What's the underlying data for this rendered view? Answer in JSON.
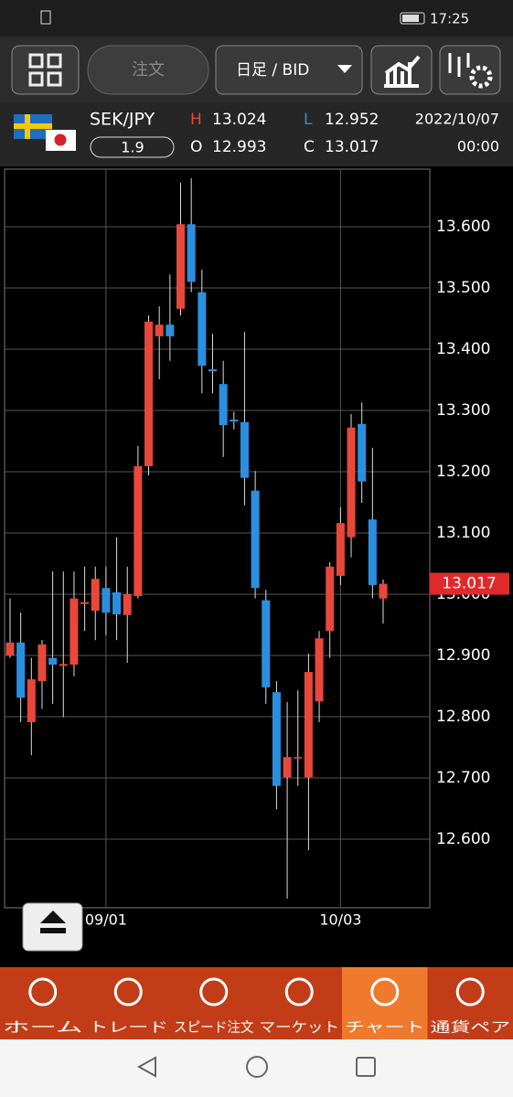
{
  "status_bar": {
    "time": "17:25"
  },
  "toolbar": {
    "order_button": "注文",
    "timeframe": "日足 / BID"
  },
  "header": {
    "pair": "SEK/JPY",
    "spread": "1.9",
    "high_label": "H",
    "high": "13.024",
    "low_label": "L",
    "low": "12.952",
    "open_label": "O",
    "open": "12.993",
    "close_label": "C",
    "close": "13.017",
    "date": "2022/10/07",
    "time": "00:00"
  },
  "chart_data": {
    "type": "candlestick",
    "categories": [
      null,
      null,
      null,
      null,
      null,
      null,
      null,
      null,
      null,
      "09/01",
      null,
      null,
      null,
      null,
      null,
      null,
      null,
      null,
      null,
      null,
      null,
      null,
      null,
      null,
      null,
      null,
      null,
      null,
      null,
      null,
      null,
      "10/03",
      null,
      null,
      null,
      null
    ],
    "open": [
      12.9,
      12.921,
      12.791,
      12.858,
      12.896,
      12.883,
      12.885,
      12.984,
      12.973,
      13.01,
      13.003,
      12.966,
      12.997,
      13.209,
      13.421,
      13.44,
      13.466,
      13.604,
      13.493,
      13.367,
      13.343,
      13.285,
      13.281,
      13.169,
      12.99,
      12.84,
      12.701,
      12.732,
      12.701,
      12.825,
      12.94,
      13.03,
      13.093,
      13.278,
      13.122,
      12.993
    ],
    "high": [
      12.993,
      12.97,
      12.896,
      12.925,
      13.037,
      13.037,
      13.037,
      13.045,
      13.045,
      13.045,
      13.093,
      13.045,
      13.242,
      13.455,
      13.47,
      13.522,
      13.672,
      13.679,
      13.53,
      13.425,
      13.381,
      13.298,
      13.428,
      13.201,
      13.007,
      12.858,
      12.824,
      12.843,
      12.903,
      12.94,
      13.052,
      13.142,
      13.294,
      13.313,
      13.239,
      13.024
    ],
    "low": [
      12.896,
      12.791,
      12.737,
      12.813,
      12.821,
      12.799,
      12.866,
      12.94,
      12.925,
      12.933,
      12.925,
      12.888,
      12.993,
      13.194,
      13.351,
      13.381,
      13.455,
      13.493,
      13.328,
      13.328,
      13.224,
      13.269,
      13.145,
      12.993,
      12.821,
      12.649,
      12.503,
      12.687,
      12.582,
      12.791,
      12.896,
      13.015,
      13.06,
      13.149,
      12.993,
      12.952
    ],
    "close": [
      12.921,
      12.831,
      12.861,
      12.918,
      12.885,
      12.886,
      12.993,
      12.987,
      13.025,
      12.97,
      12.967,
      13.0,
      13.209,
      13.445,
      13.44,
      13.421,
      13.604,
      13.51,
      13.373,
      13.364,
      13.276,
      13.282,
      13.19,
      13.01,
      12.848,
      12.687,
      12.734,
      12.734,
      12.873,
      12.928,
      13.045,
      13.116,
      13.272,
      13.184,
      13.015,
      13.017
    ],
    "up_color": "#e8473b",
    "down_color": "#2b8fe0",
    "ylim": [
      12.488,
      13.694
    ],
    "yticks": [
      {
        "value": 12.6,
        "label": "12.600"
      },
      {
        "value": 12.7,
        "label": "12.700"
      },
      {
        "value": 12.8,
        "label": "12.800"
      },
      {
        "value": 12.9,
        "label": "12.900"
      },
      {
        "value": 13.0,
        "label": "13.000"
      },
      {
        "value": 13.1,
        "label": "13.100"
      },
      {
        "value": 13.2,
        "label": "13.200"
      },
      {
        "value": 13.3,
        "label": "13.300"
      },
      {
        "value": 13.4,
        "label": "13.400"
      },
      {
        "value": 13.5,
        "label": "13.500"
      },
      {
        "value": 13.6,
        "label": "13.600"
      }
    ],
    "grid": true,
    "last_price": {
      "value": 13.017,
      "label": "13.017"
    }
  },
  "bottom_nav": [
    "ホーム",
    "トレード",
    "スピード注文",
    "マーケット",
    "チャート",
    "通貨ペア"
  ]
}
